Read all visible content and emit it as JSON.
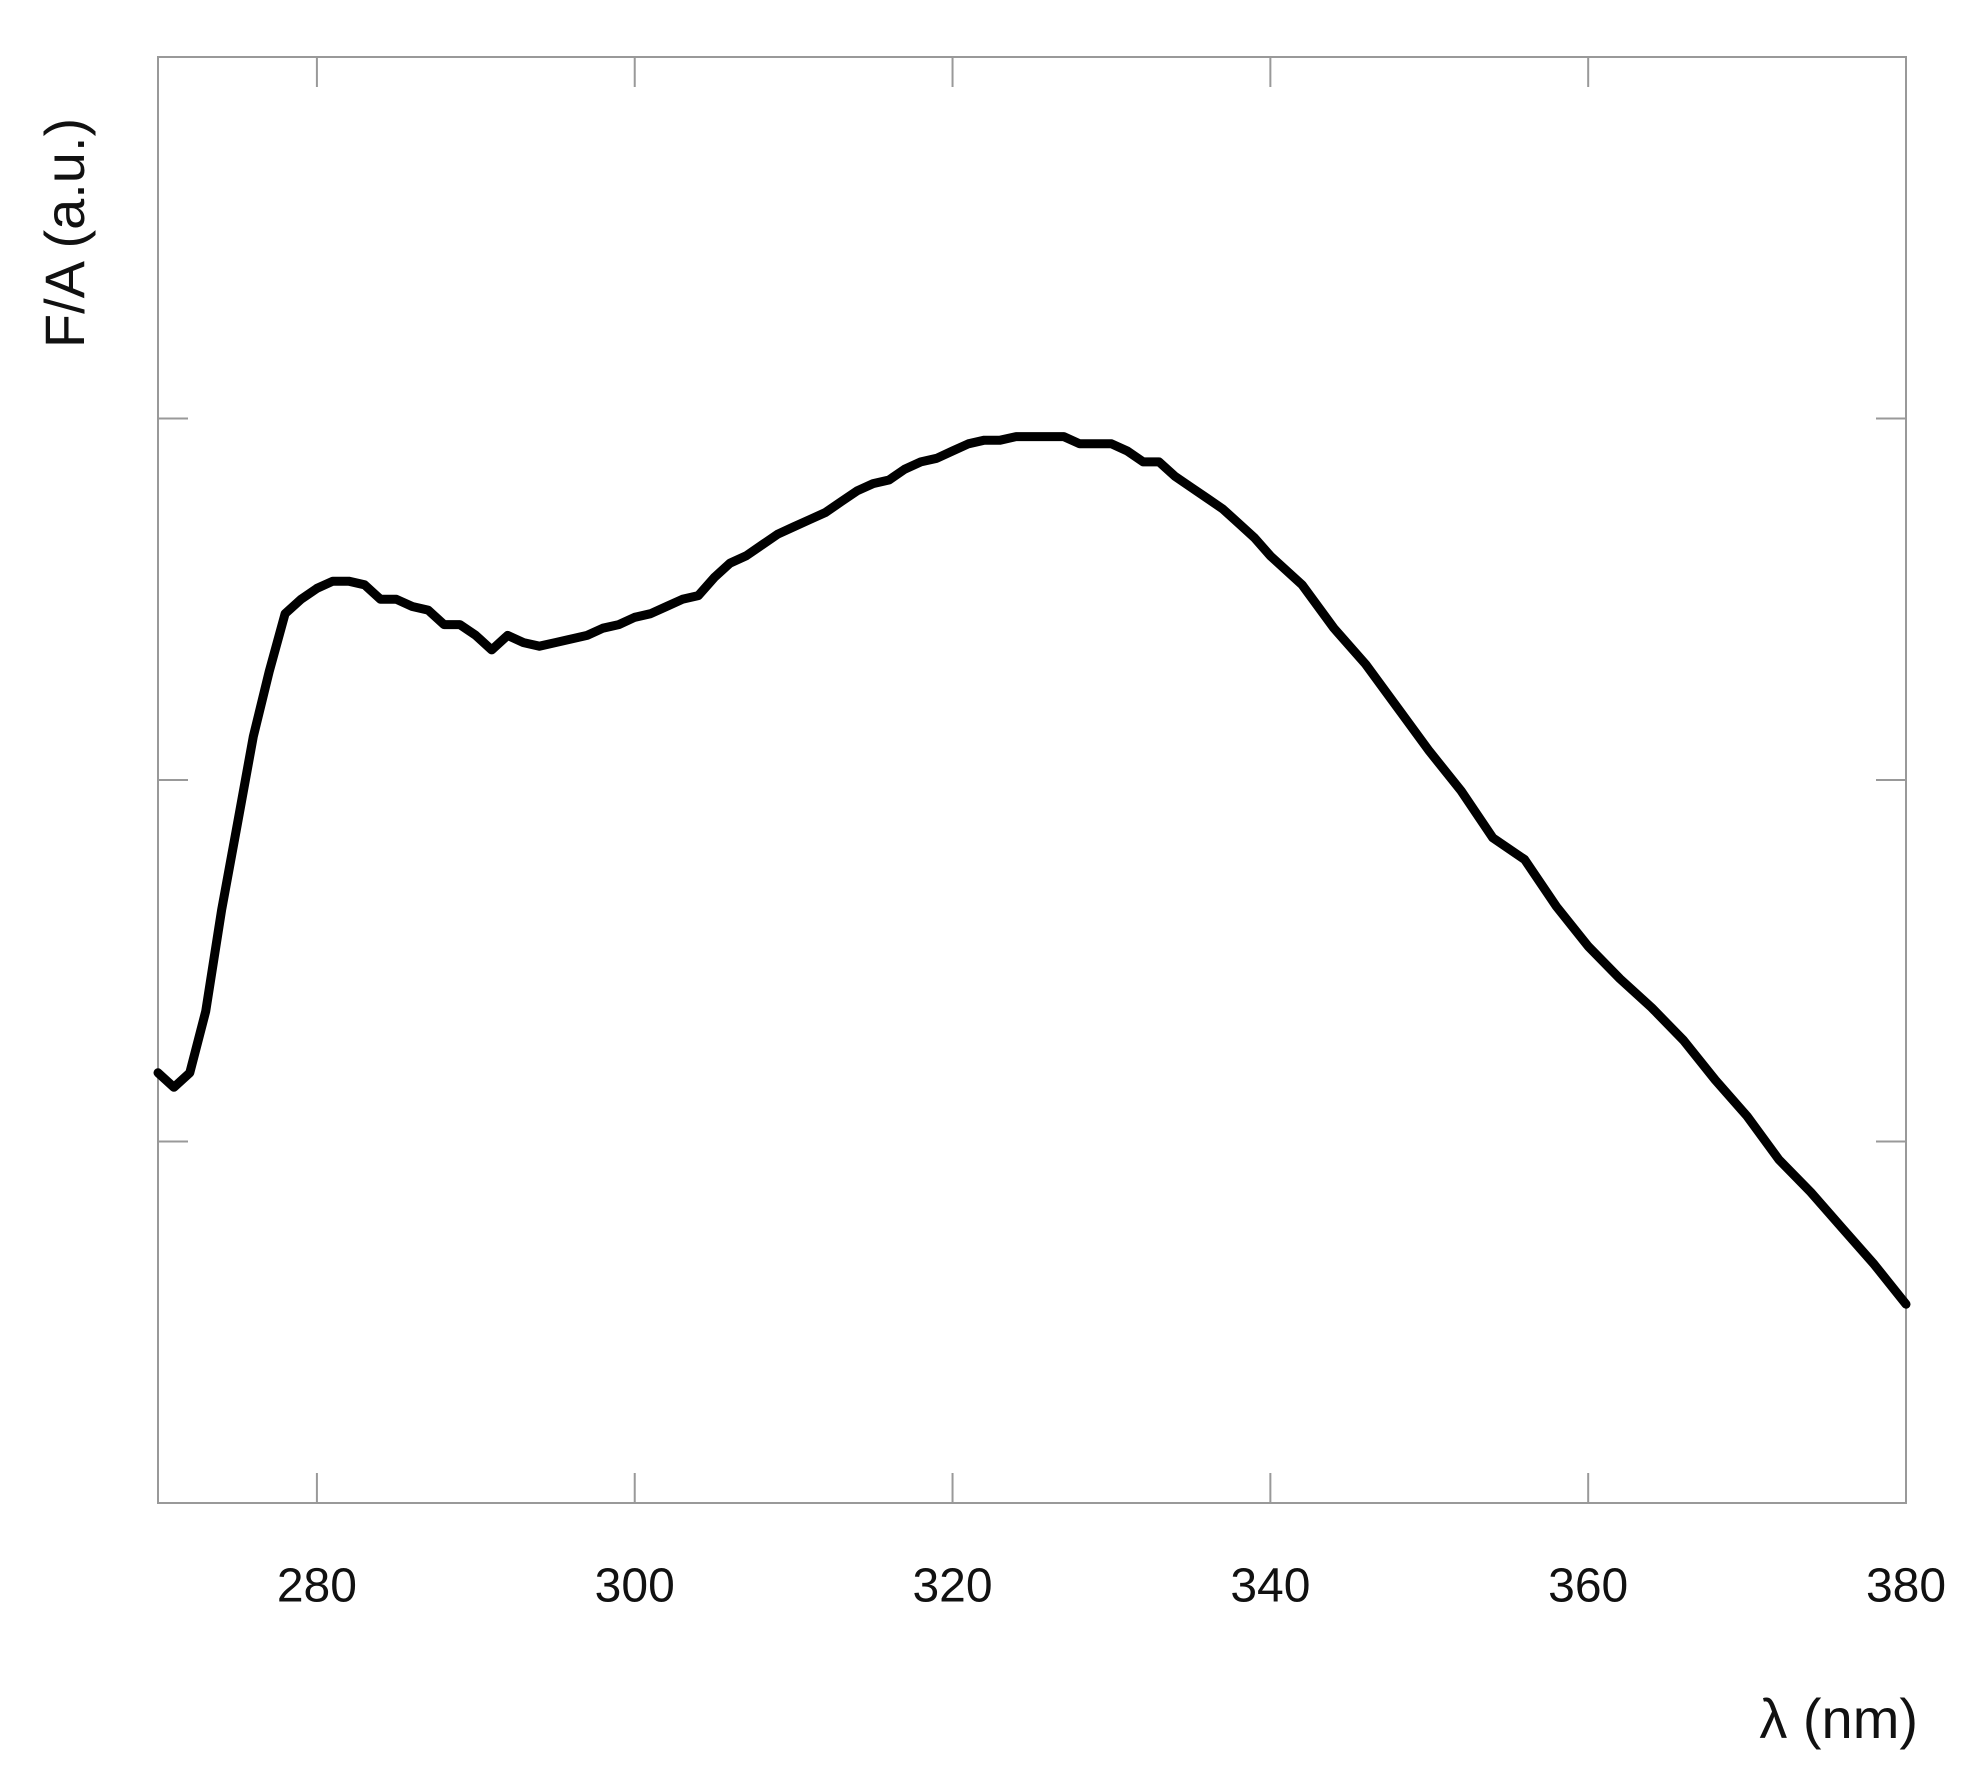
{
  "chart_data": {
    "type": "line",
    "xlabel": "λ (nm)",
    "ylabel": "F/A (a.u.)",
    "xlim": [
      270,
      380
    ],
    "xticks": [
      280,
      300,
      320,
      340,
      360,
      380
    ],
    "ylim": [
      0,
      4
    ],
    "yticks": [
      1,
      2,
      3
    ],
    "color": "#000000",
    "x": [
      270,
      271,
      272,
      273,
      274,
      275,
      276,
      277,
      278,
      279,
      280,
      281,
      282,
      283,
      284,
      285,
      286,
      287,
      288,
      289,
      290,
      291,
      292,
      293,
      294,
      295,
      296,
      297,
      298,
      299,
      300,
      301,
      302,
      303,
      304,
      305,
      306,
      307,
      308,
      309,
      310,
      311,
      312,
      313,
      314,
      315,
      316,
      317,
      318,
      319,
      320,
      321,
      322,
      323,
      324,
      325,
      326,
      327,
      328,
      329,
      330,
      331,
      332,
      333,
      334,
      335,
      336,
      337,
      338,
      339,
      340,
      342,
      344,
      346,
      348,
      350,
      352,
      354,
      356,
      358,
      360,
      362,
      364,
      366,
      368,
      370,
      372,
      374,
      376,
      378,
      380
    ],
    "values": [
      1.19,
      1.15,
      1.19,
      1.36,
      1.64,
      1.88,
      2.12,
      2.3,
      2.46,
      2.5,
      2.53,
      2.55,
      2.55,
      2.54,
      2.5,
      2.5,
      2.48,
      2.47,
      2.43,
      2.43,
      2.4,
      2.36,
      2.4,
      2.38,
      2.37,
      2.38,
      2.39,
      2.4,
      2.42,
      2.43,
      2.45,
      2.46,
      2.48,
      2.5,
      2.51,
      2.56,
      2.6,
      2.62,
      2.65,
      2.68,
      2.7,
      2.72,
      2.74,
      2.77,
      2.8,
      2.82,
      2.83,
      2.86,
      2.88,
      2.89,
      2.91,
      2.93,
      2.94,
      2.94,
      2.95,
      2.95,
      2.95,
      2.95,
      2.93,
      2.93,
      2.93,
      2.91,
      2.88,
      2.88,
      2.84,
      2.81,
      2.78,
      2.75,
      2.71,
      2.67,
      2.62,
      2.54,
      2.42,
      2.32,
      2.2,
      2.08,
      1.97,
      1.84,
      1.78,
      1.65,
      1.54,
      1.45,
      1.37,
      1.28,
      1.17,
      1.07,
      0.95,
      0.86,
      0.76,
      0.66,
      0.55
    ]
  }
}
